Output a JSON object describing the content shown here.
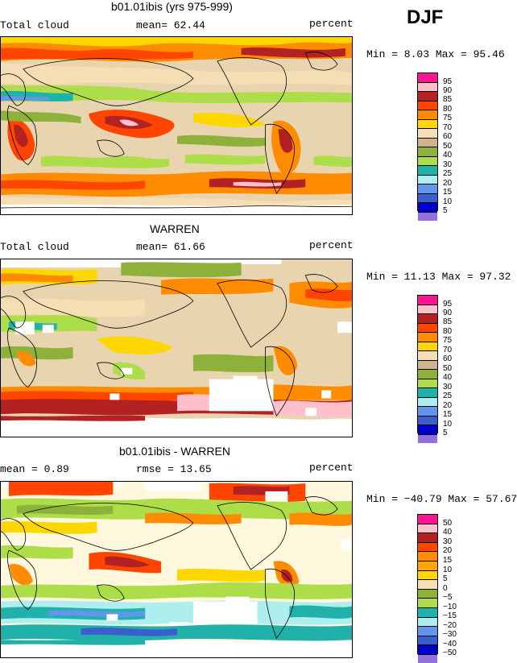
{
  "season": "DJF",
  "panels": [
    {
      "title": "b01.01ibis (yrs 975-999)",
      "left_label": "Total cloud",
      "center_label": "mean=  62.44",
      "right_label": "percent",
      "minmax": "Min =   8.03 Max =  95.46",
      "levels": [
        "95",
        "90",
        "85",
        "80",
        "75",
        "70",
        "60",
        "50",
        "40",
        "30",
        "25",
        "20",
        "15",
        "10",
        "5"
      ]
    },
    {
      "title": "WARREN",
      "left_label": "Total cloud",
      "center_label": "mean=  61.66",
      "right_label": "percent",
      "minmax": "Min =  11.13 Max =  97.32",
      "levels": [
        "95",
        "90",
        "85",
        "80",
        "75",
        "70",
        "60",
        "50",
        "40",
        "30",
        "25",
        "20",
        "15",
        "10",
        "5"
      ]
    },
    {
      "title": "b01.01ibis - WARREN",
      "left_label": "mean =   0.89",
      "center_label": "rmse =  13.65",
      "right_label": "percent",
      "minmax": "Min = −40.79 Max =  57.67",
      "levels": [
        "50",
        "40",
        "30",
        "20",
        "15",
        "10",
        "5",
        "0",
        "−5",
        "−10",
        "−15",
        "−20",
        "−30",
        "−40",
        "−50"
      ]
    }
  ],
  "colors": {
    "abs_scale": [
      "#ff1493",
      "#ffc0cb",
      "#b22222",
      "#ff4500",
      "#ff8c00",
      "#ffd700",
      "#f5deb3",
      "#d2b48c",
      "#8db13a",
      "#adde4a",
      "#20b2aa",
      "#afeeee",
      "#6495ed",
      "#3a5fcd",
      "#0000cd",
      "#9370db"
    ],
    "diff_scale": [
      "#ff1493",
      "#ffc0cb",
      "#b22222",
      "#ff4500",
      "#ff8c00",
      "#ffa500",
      "#ffd700",
      "#f5deb3",
      "#fff8dc",
      "#8db13a",
      "#adde4a",
      "#20b2aa",
      "#afeeee",
      "#6495ed",
      "#3a5fcd",
      "#0000cd",
      "#9370db"
    ]
  }
}
